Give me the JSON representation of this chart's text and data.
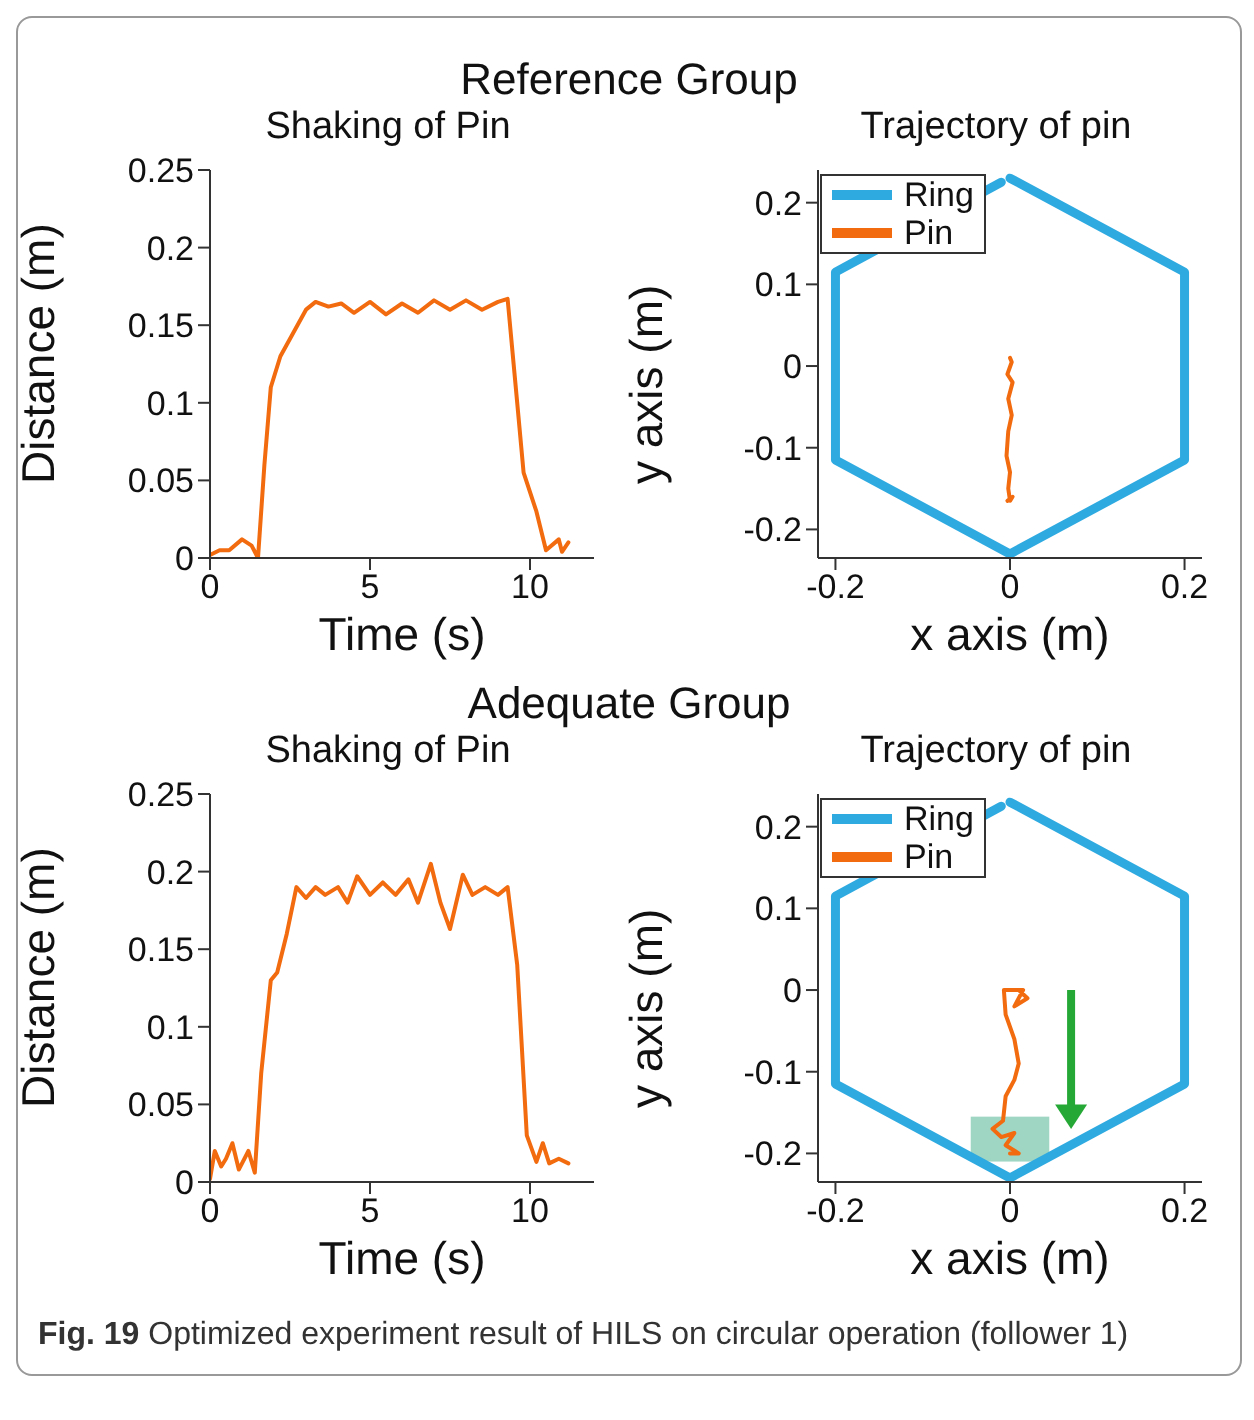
{
  "chart_data": [
    {
      "type": "line",
      "title": "Shaking of Pin",
      "xlabel": "Time (s)",
      "ylabel": "Distance (m)",
      "annotations": [
        "Reference Group"
      ],
      "xlim": [
        0,
        12
      ],
      "xticks": [
        0,
        5,
        10
      ],
      "ylim": [
        0,
        0.25
      ],
      "yticks": [
        0,
        0.05,
        0.1,
        0.15,
        0.2,
        0.25
      ],
      "grid": false,
      "legend": false,
      "marker": "none",
      "line_style": "solid",
      "series": [
        {
          "color": "#f26b0f",
          "x": [
            0,
            0.3,
            0.6,
            1.0,
            1.3,
            1.5,
            1.7,
            1.9,
            2.2,
            2.6,
            3.0,
            3.3,
            3.7,
            4.1,
            4.5,
            5,
            5.5,
            6,
            6.5,
            7,
            7.5,
            8,
            8.5,
            9.0,
            9.3,
            9.6,
            9.8,
            10.2,
            10.5,
            10.9,
            11,
            11.2
          ],
          "values": [
            0.002,
            0.005,
            0.005,
            0.012,
            0.008,
            0,
            0.06,
            0.11,
            0.13,
            0.145,
            0.16,
            0.165,
            0.162,
            0.164,
            0.158,
            0.165,
            0.157,
            0.164,
            0.158,
            0.166,
            0.16,
            0.166,
            0.16,
            0.165,
            0.167,
            0.1,
            0.055,
            0.03,
            0.005,
            0.012,
            0.004,
            0.01
          ]
        }
      ]
    },
    {
      "type": "line",
      "title": "Trajectory of pin",
      "xlabel": "x axis (m)",
      "ylabel": "y axis (m)",
      "xlim": [
        -0.22,
        0.22
      ],
      "xticks": [
        -0.2,
        0,
        0.2
      ],
      "ylim": [
        -0.235,
        0.24
      ],
      "yticks": [
        -0.2,
        -0.1,
        0,
        0.1,
        0.2
      ],
      "grid": false,
      "legend": "top left",
      "marker": "none",
      "line_style": "solid",
      "series": [
        {
          "name": "Ring",
          "color": "#2eaae1",
          "x": [
            0,
            0.2,
            0.2,
            0,
            -0.2,
            -0.2,
            -0.01
          ],
          "values": [
            0.23,
            0.115,
            -0.115,
            -0.23,
            -0.115,
            0.115,
            0.225
          ]
        },
        {
          "name": "Pin",
          "color": "#f26b0f",
          "x": [
            0,
            0.002,
            -0.003,
            0.003,
            -0.002,
            0.002,
            -0.002,
            -0.004,
            0,
            -0.002,
            0,
            0.003,
            -0.003
          ],
          "values": [
            0.01,
            0.005,
            -0.01,
            -0.02,
            -0.04,
            -0.06,
            -0.08,
            -0.11,
            -0.13,
            -0.15,
            -0.165,
            -0.16,
            -0.165
          ]
        }
      ]
    },
    {
      "type": "line",
      "title": "Shaking of Pin",
      "xlabel": "Time (s)",
      "ylabel": "Distance (m)",
      "annotations": [
        "Adequate Group"
      ],
      "xlim": [
        0,
        12
      ],
      "xticks": [
        0,
        5,
        10
      ],
      "ylim": [
        0,
        0.25
      ],
      "yticks": [
        0,
        0.05,
        0.1,
        0.15,
        0.2,
        0.25
      ],
      "grid": false,
      "legend": false,
      "marker": "none",
      "line_style": "solid",
      "series": [
        {
          "color": "#f26b0f",
          "x": [
            0,
            0.15,
            0.35,
            0.5,
            0.7,
            0.9,
            1.2,
            1.4,
            1.6,
            1.9,
            2.1,
            2.4,
            2.7,
            3.0,
            3.3,
            3.6,
            4.0,
            4.3,
            4.6,
            5,
            5.4,
            5.8,
            6.2,
            6.5,
            6.9,
            7.2,
            7.5,
            7.9,
            8.2,
            8.6,
            9.0,
            9.3,
            9.6,
            9.9,
            10.2,
            10.4,
            10.6,
            10.9,
            11.2
          ],
          "values": [
            0.002,
            0.02,
            0.01,
            0.015,
            0.025,
            0.008,
            0.02,
            0.006,
            0.07,
            0.13,
            0.135,
            0.16,
            0.19,
            0.183,
            0.19,
            0.185,
            0.19,
            0.18,
            0.197,
            0.185,
            0.193,
            0.185,
            0.195,
            0.18,
            0.205,
            0.18,
            0.163,
            0.198,
            0.185,
            0.19,
            0.185,
            0.19,
            0.14,
            0.03,
            0.013,
            0.025,
            0.012,
            0.015,
            0.012
          ]
        }
      ]
    },
    {
      "type": "line",
      "title": "Trajectory of pin",
      "xlabel": "x axis (m)",
      "ylabel": "y axis (m)",
      "annotations": [
        "Fig. 19 Optimized experiment result of HILS on circular operation (follower 1)"
      ],
      "xlim": [
        -0.22,
        0.22
      ],
      "xticks": [
        -0.2,
        0,
        0.2
      ],
      "ylim": [
        -0.235,
        0.24
      ],
      "yticks": [
        -0.2,
        -0.1,
        0,
        0.1,
        0.2
      ],
      "grid": false,
      "legend": "top left",
      "marker": "none",
      "line_style": "solid",
      "series": [
        {
          "name": "Ring",
          "color": "#2eaae1",
          "x": [
            0,
            0.2,
            0.2,
            0,
            -0.2,
            -0.2,
            -0.01
          ],
          "values": [
            0.23,
            0.115,
            -0.115,
            -0.23,
            -0.115,
            0.115,
            0.225
          ]
        },
        {
          "name": "Pin",
          "color": "#f26b0f",
          "x": [
            0.01,
            0.02,
            0.005,
            0.015,
            -0.007,
            -0.005,
            0.005,
            0.01,
            0.005,
            -0.005,
            -0.008,
            -0.02,
            -0.01,
            0.005,
            -0.005,
            0.01,
            0
          ],
          "values": [
            0,
            -0.01,
            -0.02,
            0,
            0,
            -0.03,
            -0.06,
            -0.09,
            -0.11,
            -0.13,
            -0.16,
            -0.17,
            -0.18,
            -0.175,
            -0.19,
            -0.2,
            -0.2
          ]
        }
      ]
    }
  ]
}
